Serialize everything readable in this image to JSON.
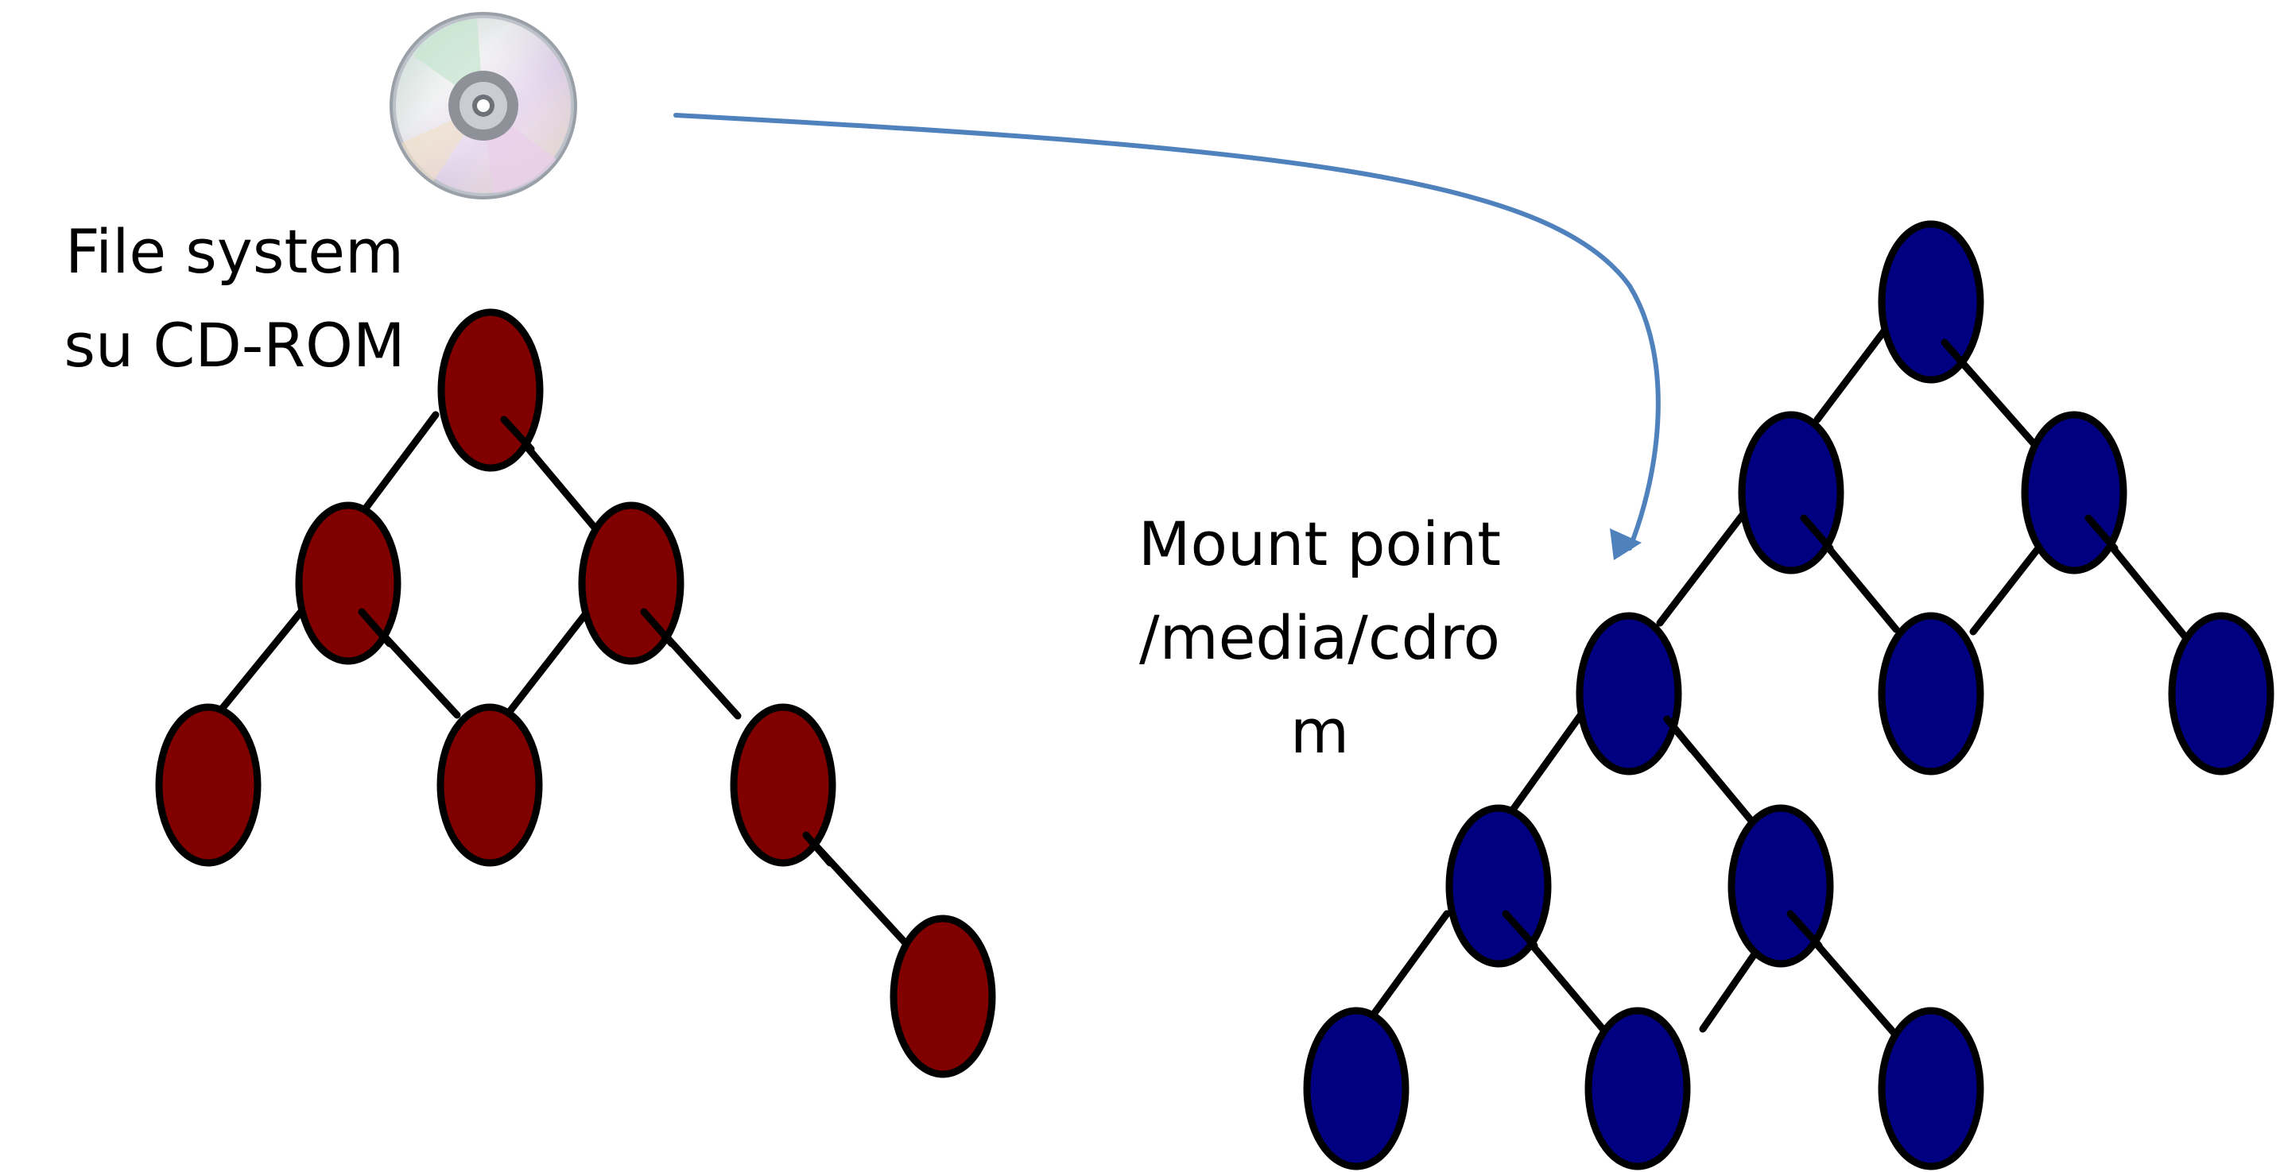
{
  "cd_filesystem": {
    "label_lines": [
      "File system",
      "su CD-ROM"
    ],
    "node_color": "#800000",
    "icon": "cd-disc-icon"
  },
  "mount_point": {
    "label_lines": [
      "Mount point",
      "/media/cdro",
      "m"
    ]
  },
  "host_filesystem": {
    "node_color": "#000080"
  },
  "arrow": {
    "color": "#4F81BD"
  }
}
